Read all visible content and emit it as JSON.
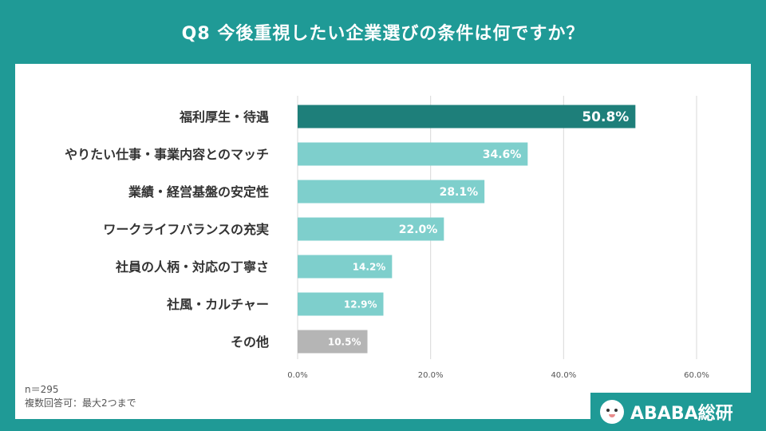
{
  "title": "Q8  今後重視したい企業選びの条件は何ですか？",
  "notes": {
    "n": "n＝295",
    "multi": "複数回答可：最大2つまで"
  },
  "brand": {
    "name": "ABABA総研",
    "icon": "cat-mascot-icon"
  },
  "colors": {
    "background": "#1f9a96",
    "highlight": "#1e7f7a",
    "bar": "#7ecfcc",
    "other": "#b5b5b5"
  },
  "chart_data": {
    "type": "bar",
    "orientation": "horizontal",
    "categories": [
      "福利厚生・待遇",
      "やりたい仕事・事業内容とのマッチ",
      "業績・経営基盤の安定性",
      "ワークライフバランスの充実",
      "社員の人柄・対応の丁寧さ",
      "社風・カルチャー",
      "その他"
    ],
    "values": [
      50.8,
      34.6,
      28.1,
      22.0,
      14.2,
      12.9,
      10.5
    ],
    "value_labels": [
      "50.8%",
      "34.6%",
      "28.1%",
      "22.0%",
      "14.2%",
      "12.9%",
      "10.5%"
    ],
    "xticks": [
      0,
      20,
      40,
      60
    ],
    "xtick_labels": [
      "0.0%",
      "20.0%",
      "40.0%",
      "60.0%"
    ],
    "xlim": [
      0,
      60
    ],
    "grid": true,
    "legend": "none"
  }
}
